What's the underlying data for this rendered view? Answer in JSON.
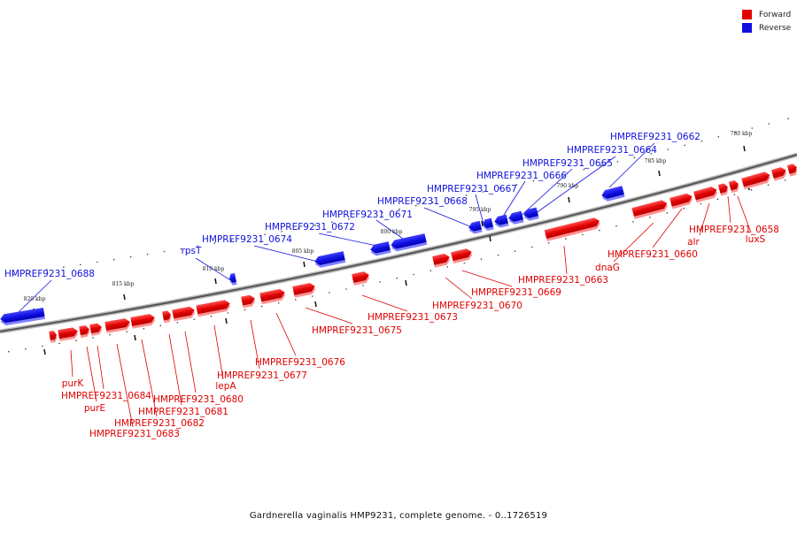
{
  "legend": {
    "forward_label": "Forward",
    "reverse_label": "Reverse",
    "forward_color": "#e00000",
    "reverse_color": "#1010e0"
  },
  "caption": "Gardnerella vaginalis HMP9231, complete genome. - 0..1726519",
  "scale_labels": [
    "780 kbp",
    "785 kbp",
    "790 kbp",
    "795 kbp",
    "800 kbp",
    "805 kbp",
    "810 kbp",
    "815 kbp",
    "820 kbp"
  ],
  "reverse_genes": [
    "HMPREF9231_0662",
    "HMPREF9231_0664",
    "HMPREF9231_0665",
    "HMPREF9231_0666",
    "HMPREF9231_0667",
    "HMPREF9231_0668",
    "HMPREF9231_0671",
    "HMPREF9231_0672",
    "HMPREF9231_0674",
    "rpsT",
    "HMPREF9231_0688"
  ],
  "forward_genes": [
    "HMPREF9231_0658",
    "luxS",
    "alr",
    "HMPREF9231_0660",
    "dnaG",
    "HMPREF9231_0663",
    "HMPREF9231_0669",
    "HMPREF9231_0670",
    "HMPREF9231_0673",
    "HMPREF9231_0675",
    "HMPREF9231_0676",
    "HMPREF9231_0677",
    "lepA",
    "HMPREF9231_0680",
    "HMPREF9231_0681",
    "HMPREF9231_0682",
    "HMPREF9231_0683",
    "HMPREF9231_0684",
    "purE",
    "purK"
  ]
}
